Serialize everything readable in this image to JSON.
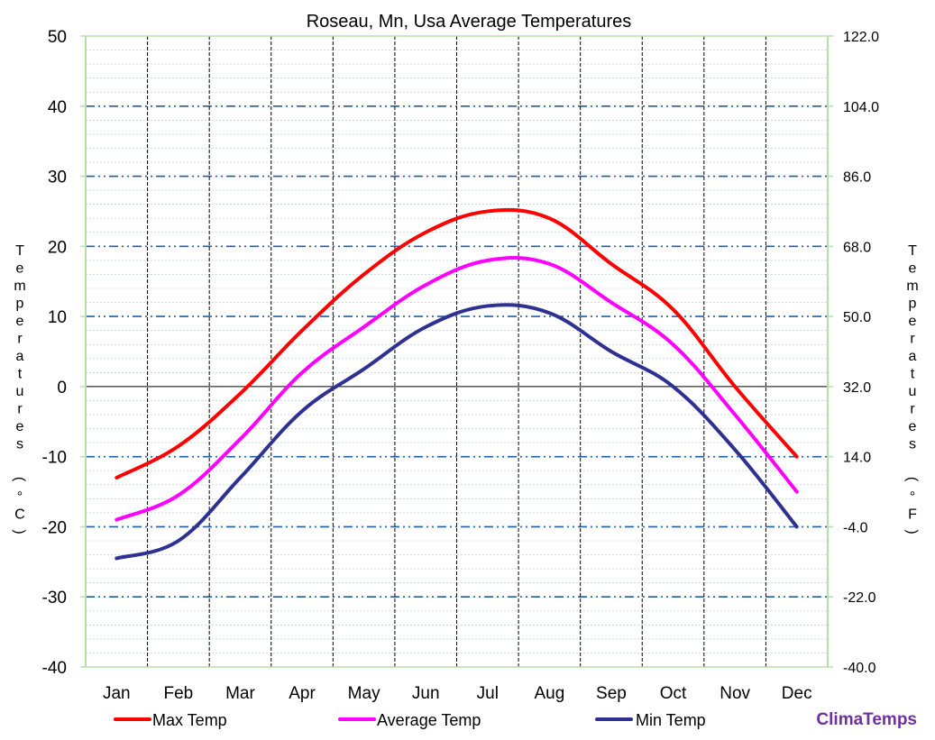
{
  "chart_data": {
    "type": "line",
    "title": "Roseau, Mn, Usa Average Temperatures",
    "categories": [
      "Jan",
      "Feb",
      "Mar",
      "Apr",
      "May",
      "Jun",
      "Jul",
      "Aug",
      "Sep",
      "Oct",
      "Nov",
      "Dec"
    ],
    "series": [
      {
        "name": "Max Temp",
        "color": "#ff0000",
        "values": [
          -13,
          -8.5,
          -1,
          8,
          16,
          22,
          25,
          24,
          17.5,
          11,
          0,
          -10
        ]
      },
      {
        "name": "Average Temp",
        "color": "#ff00ff",
        "values": [
          -19,
          -15.5,
          -7.5,
          2,
          8.5,
          14.5,
          18,
          17.5,
          12,
          6,
          -4,
          -15
        ]
      },
      {
        "name": "Min Temp",
        "color": "#2e3192",
        "values": [
          -24.5,
          -22,
          -13,
          -3.5,
          2.5,
          8.5,
          11.5,
          10.5,
          5,
          0,
          -9,
          -20
        ]
      }
    ],
    "ylabel": "Temperatures (°C)",
    "ylabel_right": "Temperatures (°F)",
    "ylim": [
      -40,
      50
    ],
    "yticks": [
      "50",
      "40",
      "30",
      "20",
      "10",
      "0",
      "-10",
      "-20",
      "-30",
      "-40"
    ],
    "ylim_right": [
      -40,
      122
    ],
    "yticks_right": [
      "122.0",
      "104.0",
      "86.0",
      "68.0",
      "50.0",
      "32.0",
      "14.0",
      "-4.0",
      "-22.0",
      "-40.0"
    ],
    "grid": true,
    "legend_position": "bottom",
    "brand": "ClimaTemps",
    "brand_color": "#7030a0"
  }
}
